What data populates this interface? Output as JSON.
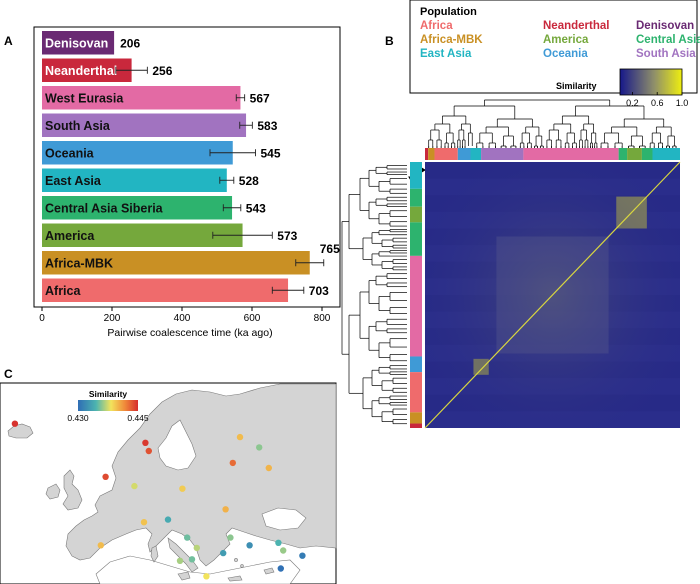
{
  "panels": {
    "a": "A",
    "b": "B",
    "c": "C"
  },
  "chart_data": [
    {
      "type": "bar",
      "orientation": "horizontal",
      "categories": [
        "Denisovan",
        "Neanderthal",
        "West Eurasia",
        "South Asia",
        "Oceania",
        "East Asia",
        "Central Asia Siberia",
        "America",
        "Africa-MBK",
        "Africa"
      ],
      "values": [
        206,
        256,
        567,
        583,
        545,
        528,
        543,
        573,
        765,
        703
      ],
      "value_labels": [
        "206",
        "256",
        "567",
        "583",
        "545",
        "528",
        "543",
        "573",
        "765",
        "703"
      ],
      "error": [
        0,
        45,
        12,
        18,
        65,
        20,
        25,
        85,
        40,
        45
      ],
      "colors": [
        "#6a2a73",
        "#c9283c",
        "#e36aa4",
        "#a173c0",
        "#3f9ad6",
        "#22b5c2",
        "#2db36e",
        "#75a83c",
        "#c99024",
        "#ef6b6c"
      ],
      "label_colors": [
        "#ffffff",
        "#ffffff",
        "#111111",
        "#111111",
        "#111111",
        "#111111",
        "#111111",
        "#111111",
        "#111111",
        "#111111"
      ],
      "xlabel": "Pairwise coalescence time (ka ago)",
      "xlim": [
        0,
        870
      ],
      "xticks": [
        0,
        200,
        400,
        600,
        800
      ],
      "xtick_labels": [
        "0",
        "200",
        "400",
        "600",
        "800"
      ]
    },
    {
      "type": "heatmap",
      "legend": {
        "title": "Population",
        "entries": [
          {
            "name": "Africa",
            "color": "#ef6b6c"
          },
          {
            "name": "Neanderthal",
            "color": "#c9283c"
          },
          {
            "name": "Denisovan",
            "color": "#6a2a73"
          },
          {
            "name": "Africa-MBK",
            "color": "#c99024"
          },
          {
            "name": "America",
            "color": "#75a83c"
          },
          {
            "name": "Central Asia Siberia",
            "color": "#2db36e"
          },
          {
            "name": "East Asia",
            "color": "#22b5c2"
          },
          {
            "name": "Oceania",
            "color": "#3f9ad6"
          },
          {
            "name": "South Asia",
            "color": "#a173c0"
          },
          {
            "name": "West Eurasia",
            "color": "#e36aa4"
          }
        ]
      },
      "colorbar": {
        "title": "Similarity",
        "min": 0.0,
        "max": 1.0,
        "ticks": [
          0.2,
          0.6,
          1.0
        ],
        "tick_labels": [
          "0.2",
          "0.6",
          "1.0"
        ],
        "colors": [
          "#16188a",
          "#e8e000"
        ]
      },
      "top_annotation_order": [
        "Neanderthal",
        "Africa-MBK",
        "Africa",
        "Oceania",
        "East Asia",
        "South Asia",
        "West Eurasia",
        "Central Asia Siberia",
        "America",
        "Central Asia Siberia",
        "East Asia"
      ],
      "top_annotation_widths": [
        3,
        6,
        22,
        12,
        10,
        40,
        90,
        8,
        14,
        10,
        26
      ],
      "left_annotation_order": [
        "East Asia",
        "Central Asia Siberia",
        "America",
        "Central Asia Siberia",
        "West Eurasia",
        "Oceania",
        "Africa",
        "Africa-MBK",
        "Neanderthal"
      ],
      "left_annotation_heights": [
        24,
        16,
        14,
        30,
        90,
        14,
        36,
        10,
        4
      ],
      "blocks": [
        {
          "row_from": 0.13,
          "row_to": 0.25,
          "col_from": 0.75,
          "col_to": 0.87,
          "similarity": 0.6
        },
        {
          "row_from": 0.74,
          "row_to": 0.8,
          "col_from": 0.19,
          "col_to": 0.25,
          "similarity": 0.6
        },
        {
          "row_from": 0.28,
          "row_to": 0.72,
          "col_from": 0.28,
          "col_to": 0.72,
          "similarity": 0.35
        }
      ]
    },
    {
      "type": "map",
      "region": "Europe",
      "colorbar": {
        "title": "Similarity",
        "min": 0.43,
        "max": 0.445,
        "ticks": [
          0.43,
          0.445
        ],
        "tick_labels": [
          "0.430",
          "0.445"
        ],
        "colors": [
          "#2f6db5",
          "#4cb4b0",
          "#f2e35c",
          "#f08a3a",
          "#d62d2d"
        ]
      },
      "points": [
        {
          "lon": -21.9,
          "lat": 64.1,
          "similarity": 0.4448
        },
        {
          "lon": 5.3,
          "lat": 60.4,
          "similarity": 0.4445
        },
        {
          "lon": 6.0,
          "lat": 58.8,
          "similarity": 0.4435
        },
        {
          "lon": 25.0,
          "lat": 61.5,
          "similarity": 0.4392
        },
        {
          "lon": 23.5,
          "lat": 56.5,
          "similarity": 0.4425
        },
        {
          "lon": 31.0,
          "lat": 55.5,
          "similarity": 0.4395
        },
        {
          "lon": -3.0,
          "lat": 53.8,
          "similarity": 0.4438
        },
        {
          "lon": 3.0,
          "lat": 52.0,
          "similarity": 0.4368
        },
        {
          "lon": 13.0,
          "lat": 51.5,
          "similarity": 0.4385
        },
        {
          "lon": 22.0,
          "lat": 47.5,
          "similarity": 0.4396
        },
        {
          "lon": 5.0,
          "lat": 45.0,
          "similarity": 0.4389
        },
        {
          "lon": -4.0,
          "lat": 40.5,
          "similarity": 0.4392
        },
        {
          "lon": 10.0,
          "lat": 45.5,
          "similarity": 0.4332
        },
        {
          "lon": 14.0,
          "lat": 42.0,
          "similarity": 0.4345
        },
        {
          "lon": 16.0,
          "lat": 40.0,
          "similarity": 0.4362
        },
        {
          "lon": 23.0,
          "lat": 42.0,
          "similarity": 0.4352
        },
        {
          "lon": 21.5,
          "lat": 39.0,
          "similarity": 0.4325
        },
        {
          "lon": 27.0,
          "lat": 40.5,
          "similarity": 0.4318
        },
        {
          "lon": 33.0,
          "lat": 41.0,
          "similarity": 0.4337
        },
        {
          "lon": 34.0,
          "lat": 39.5,
          "similarity": 0.4355
        },
        {
          "lon": 33.5,
          "lat": 36.0,
          "similarity": 0.4302
        },
        {
          "lon": 38.0,
          "lat": 38.5,
          "similarity": 0.4308
        },
        {
          "lon": 12.5,
          "lat": 37.5,
          "similarity": 0.4358
        },
        {
          "lon": 15.0,
          "lat": 37.8,
          "similarity": 0.4346
        },
        {
          "lon": 29.0,
          "lat": 59.5,
          "similarity": 0.4352
        },
        {
          "lon": 18.0,
          "lat": 34.5,
          "similarity": 0.4375
        }
      ]
    }
  ]
}
